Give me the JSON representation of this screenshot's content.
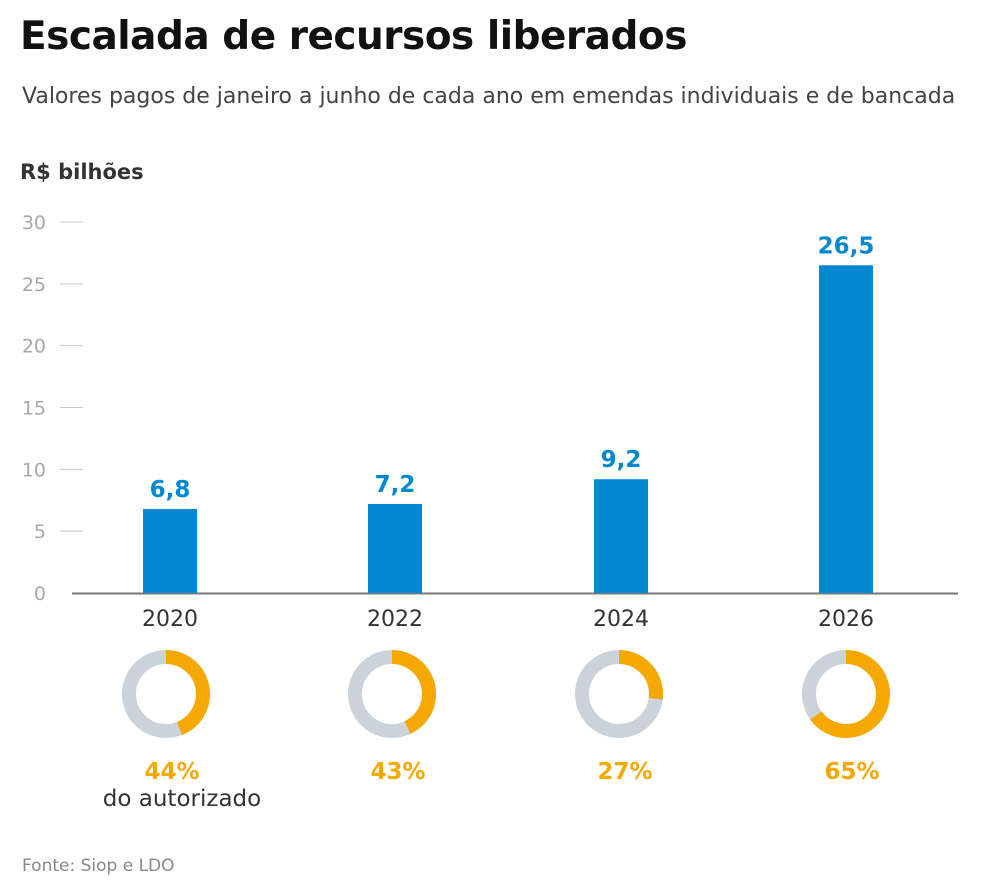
{
  "header": {
    "title": "Escalada de recursos liberados",
    "subtitle": "Valores pagos de janeiro a junho de cada ano em emendas individuais e de bancada",
    "unit": "R$ bilhões"
  },
  "footer": {
    "source": "Fonte: Siop e LDO"
  },
  "colors": {
    "bar": "#0088d1",
    "donut_filled": "#f5a800",
    "donut_empty": "#cbd3da"
  },
  "chart_data": [
    {
      "type": "bar",
      "title": "Escalada de recursos liberados",
      "ylabel": "R$ bilhões",
      "categories": [
        "2020",
        "2022",
        "2024",
        "2026"
      ],
      "values": [
        6.8,
        7.2,
        9.2,
        26.5
      ],
      "data_labels": [
        "6,8",
        "7,2",
        "9,2",
        "26,5"
      ],
      "ylim": [
        0,
        30
      ],
      "yticks": [
        0,
        5,
        10,
        15,
        20,
        25,
        30
      ],
      "grid": false
    },
    {
      "type": "pie",
      "variant": "donut",
      "categories": [
        "2020",
        "2022",
        "2024",
        "2026"
      ],
      "values": [
        44,
        43,
        27,
        65
      ],
      "data_labels": [
        "44%",
        "43%",
        "27%",
        "65%"
      ],
      "caption": "do autorizado"
    }
  ]
}
